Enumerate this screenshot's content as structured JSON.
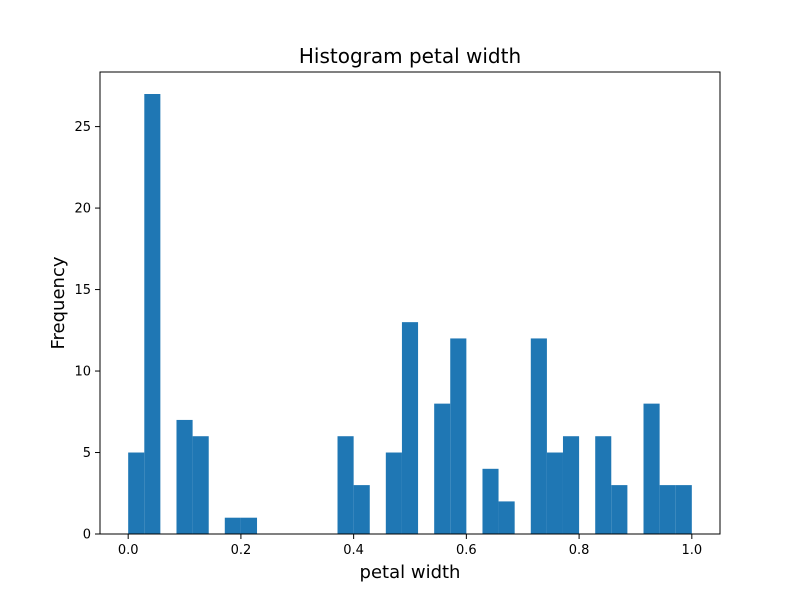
{
  "chart_data": {
    "type": "bar",
    "title": "Histogram petal width",
    "xlabel": "petal width",
    "ylabel": "Frequency",
    "bin_edges": [
      0.0,
      0.0286,
      0.0571,
      0.0857,
      0.1143,
      0.1429,
      0.1714,
      0.2,
      0.2286,
      0.2571,
      0.2857,
      0.3143,
      0.3429,
      0.3714,
      0.4,
      0.4286,
      0.4571,
      0.4857,
      0.5143,
      0.5429,
      0.5714,
      0.6,
      0.6286,
      0.6571,
      0.6857,
      0.7143,
      0.7429,
      0.7714,
      0.8,
      0.8286,
      0.8571,
      0.8857,
      0.9143,
      0.9429,
      0.9714,
      1.0
    ],
    "values": [
      5,
      27,
      0,
      7,
      6,
      0,
      1,
      1,
      0,
      0,
      0,
      0,
      0,
      6,
      3,
      0,
      5,
      13,
      0,
      8,
      12,
      0,
      4,
      2,
      0,
      12,
      5,
      6,
      0,
      6,
      3,
      0,
      8,
      3,
      3
    ],
    "color": "#1f77b4",
    "xlim": [
      -0.05,
      1.05
    ],
    "ylim": [
      0,
      28.35
    ],
    "xticks": [
      0.0,
      0.2,
      0.4,
      0.6,
      0.8,
      1.0
    ],
    "xtick_labels": [
      "0.0",
      "0.2",
      "0.4",
      "0.6",
      "0.8",
      "1.0"
    ],
    "yticks": [
      0,
      5,
      10,
      15,
      20,
      25
    ],
    "ytick_labels": [
      "0",
      "5",
      "10",
      "15",
      "20",
      "25"
    ],
    "grid": false,
    "legend": "none"
  }
}
